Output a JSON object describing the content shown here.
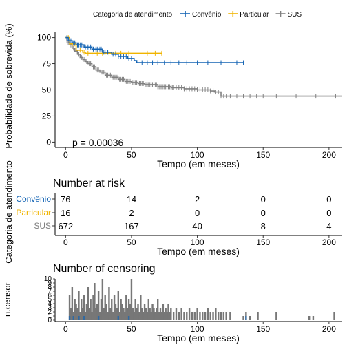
{
  "chart_data": [
    {
      "type": "line",
      "ylabel": "Probabilidade de sobrevida (%)",
      "xlabel": "Tempo (em meses)",
      "xlim": [
        -8,
        210
      ],
      "ylim": [
        -5,
        105
      ],
      "xticks": [
        0,
        50,
        100,
        150,
        200
      ],
      "yticks": [
        0,
        25,
        50,
        75,
        100
      ],
      "grid": false,
      "legend": {
        "position": "top",
        "title": "Categoria de atendimento:",
        "entries": [
          "Convênio",
          "Particular",
          "SUS"
        ]
      },
      "annotation": "p = 0.00036",
      "series": [
        {
          "name": "Convênio",
          "color": "#1464b4",
          "points": [
            [
              0,
              100
            ],
            [
              2,
              97
            ],
            [
              5,
              95
            ],
            [
              8,
              93
            ],
            [
              14,
              91
            ],
            [
              20,
              89
            ],
            [
              28,
              86
            ],
            [
              35,
              84
            ],
            [
              40,
              82
            ],
            [
              47,
              80
            ],
            [
              52,
              78
            ],
            [
              54,
              76
            ],
            [
              135,
              76
            ]
          ],
          "censor": [
            1,
            3,
            4,
            6,
            7,
            9,
            10,
            11,
            12,
            13,
            15,
            17,
            19,
            21,
            23,
            24,
            26,
            27,
            29,
            30,
            32,
            33,
            36,
            38,
            40,
            42,
            44,
            46,
            48,
            50,
            55,
            58,
            62,
            66,
            70,
            75,
            80,
            86,
            92,
            100,
            108,
            118,
            130,
            135
          ]
        },
        {
          "name": "Particular",
          "color": "#f0b400",
          "points": [
            [
              0,
              100
            ],
            [
              3,
              94
            ],
            [
              8,
              88
            ],
            [
              13,
              86
            ],
            [
              15,
              85
            ],
            [
              73,
              85
            ]
          ],
          "censor": [
            2,
            5,
            7,
            11,
            14,
            17,
            20,
            24,
            28,
            33,
            38,
            42,
            48,
            55,
            62,
            68,
            73
          ]
        },
        {
          "name": "SUS",
          "color": "#808080",
          "points": [
            [
              0,
              100
            ],
            [
              1,
              97
            ],
            [
              2,
              95
            ],
            [
              3,
              93
            ],
            [
              5,
              90
            ],
            [
              7,
              87
            ],
            [
              9,
              84
            ],
            [
              11,
              81
            ],
            [
              13,
              79
            ],
            [
              15,
              77
            ],
            [
              17,
              75
            ],
            [
              20,
              72
            ],
            [
              23,
              69
            ],
            [
              26,
              67
            ],
            [
              30,
              64
            ],
            [
              35,
              62
            ],
            [
              40,
              60
            ],
            [
              45,
              58
            ],
            [
              50,
              57
            ],
            [
              55,
              56
            ],
            [
              60,
              55
            ],
            [
              70,
              53
            ],
            [
              80,
              52
            ],
            [
              90,
              51
            ],
            [
              100,
              50
            ],
            [
              110,
              49
            ],
            [
              113,
              48
            ],
            [
              118,
              44
            ],
            [
              210,
              44
            ]
          ],
          "censor": [
            1,
            2,
            4,
            6,
            8,
            10,
            12,
            14,
            16,
            18,
            19,
            21,
            22,
            24,
            25,
            27,
            28,
            29,
            31,
            32,
            33,
            34,
            36,
            37,
            38,
            39,
            41,
            42,
            43,
            44,
            46,
            47,
            48,
            49,
            51,
            52,
            53,
            54,
            56,
            57,
            58,
            59,
            61,
            62,
            63,
            64,
            65,
            66,
            68,
            69,
            70,
            71,
            72,
            73,
            74,
            75,
            76,
            77,
            78,
            79,
            80,
            81,
            82,
            84,
            86,
            88,
            90,
            92,
            94,
            96,
            98,
            100,
            102,
            104,
            106,
            108,
            110,
            112,
            114,
            116,
            118,
            120,
            122,
            125,
            130,
            135,
            140,
            145,
            150,
            160,
            175,
            190,
            205
          ]
        }
      ]
    },
    {
      "type": "table",
      "title": "Number at risk",
      "xlabel": "Tempo (em meses)",
      "ylabel": "Categoria de atendimento",
      "xticks": [
        0,
        50,
        100,
        150,
        200
      ],
      "rows": [
        {
          "name": "Convênio",
          "color": "#1464b4",
          "values": [
            "76",
            "14",
            "2",
            "0",
            "0"
          ]
        },
        {
          "name": "Particular",
          "color": "#f0b400",
          "values": [
            "16",
            "2",
            "0",
            "0",
            "0"
          ]
        },
        {
          "name": "SUS",
          "color": "#808080",
          "values": [
            "672",
            "167",
            "40",
            "8",
            "4"
          ]
        }
      ]
    },
    {
      "type": "bar",
      "title": "Number of censoring",
      "xlabel": "Tempo (em meses)",
      "ylabel": "n.censor",
      "xlim": [
        -8,
        210
      ],
      "ylim": [
        0,
        10
      ],
      "yticks": [
        0,
        1,
        2,
        3,
        4,
        5,
        6,
        7,
        8,
        9,
        10
      ],
      "ytick_labels": [
        "0",
        "1",
        "2",
        "3",
        "4",
        "5",
        "6",
        "7",
        "8",
        "9",
        "10"
      ],
      "xticks": [
        0,
        50,
        100,
        150,
        200
      ],
      "bars": [
        [
          3,
          6
        ],
        [
          4,
          3
        ],
        [
          5,
          8
        ],
        [
          6,
          2
        ],
        [
          7,
          5
        ],
        [
          8,
          4
        ],
        [
          9,
          3
        ],
        [
          10,
          7
        ],
        [
          11,
          2
        ],
        [
          12,
          5
        ],
        [
          13,
          3
        ],
        [
          14,
          6
        ],
        [
          15,
          2
        ],
        [
          16,
          4
        ],
        [
          17,
          8
        ],
        [
          18,
          3
        ],
        [
          19,
          5
        ],
        [
          20,
          2
        ],
        [
          21,
          6
        ],
        [
          22,
          9
        ],
        [
          23,
          3
        ],
        [
          24,
          4
        ],
        [
          25,
          7
        ],
        [
          26,
          2
        ],
        [
          27,
          5
        ],
        [
          28,
          10
        ],
        [
          29,
          3
        ],
        [
          30,
          6
        ],
        [
          31,
          4
        ],
        [
          32,
          2
        ],
        [
          33,
          8
        ],
        [
          34,
          3
        ],
        [
          35,
          5
        ],
        [
          36,
          2
        ],
        [
          37,
          6
        ],
        [
          38,
          4
        ],
        [
          39,
          3
        ],
        [
          40,
          7
        ],
        [
          41,
          2
        ],
        [
          42,
          5
        ],
        [
          43,
          4
        ],
        [
          44,
          3
        ],
        [
          45,
          2
        ],
        [
          46,
          6
        ],
        [
          47,
          3
        ],
        [
          48,
          5
        ],
        [
          49,
          4
        ],
        [
          50,
          10
        ],
        [
          51,
          3
        ],
        [
          52,
          2
        ],
        [
          53,
          5
        ],
        [
          54,
          3
        ],
        [
          55,
          4
        ],
        [
          56,
          2
        ],
        [
          57,
          6
        ],
        [
          58,
          3
        ],
        [
          59,
          2
        ],
        [
          60,
          4
        ],
        [
          61,
          3
        ],
        [
          62,
          2
        ],
        [
          63,
          5
        ],
        [
          64,
          3
        ],
        [
          65,
          2
        ],
        [
          66,
          4
        ],
        [
          67,
          3
        ],
        [
          68,
          2
        ],
        [
          69,
          3
        ],
        [
          70,
          5
        ],
        [
          71,
          2
        ],
        [
          72,
          3
        ],
        [
          73,
          2
        ],
        [
          74,
          4
        ],
        [
          75,
          2
        ],
        [
          76,
          3
        ],
        [
          77,
          2
        ],
        [
          78,
          4
        ],
        [
          79,
          2
        ],
        [
          80,
          3
        ],
        [
          82,
          2
        ],
        [
          84,
          3
        ],
        [
          86,
          2
        ],
        [
          88,
          3
        ],
        [
          90,
          2
        ],
        [
          92,
          2
        ],
        [
          94,
          3
        ],
        [
          96,
          2
        ],
        [
          98,
          2
        ],
        [
          100,
          3
        ],
        [
          102,
          2
        ],
        [
          104,
          2
        ],
        [
          106,
          2
        ],
        [
          108,
          3
        ],
        [
          110,
          2
        ],
        [
          112,
          2
        ],
        [
          114,
          3
        ],
        [
          116,
          2
        ],
        [
          118,
          2
        ],
        [
          120,
          2
        ],
        [
          122,
          2
        ],
        [
          125,
          2
        ],
        [
          135,
          1
        ],
        [
          137,
          2
        ],
        [
          140,
          1
        ],
        [
          146,
          2
        ],
        [
          160,
          2
        ],
        [
          185,
          1
        ],
        [
          188,
          1
        ],
        [
          204,
          2
        ]
      ]
    }
  ]
}
